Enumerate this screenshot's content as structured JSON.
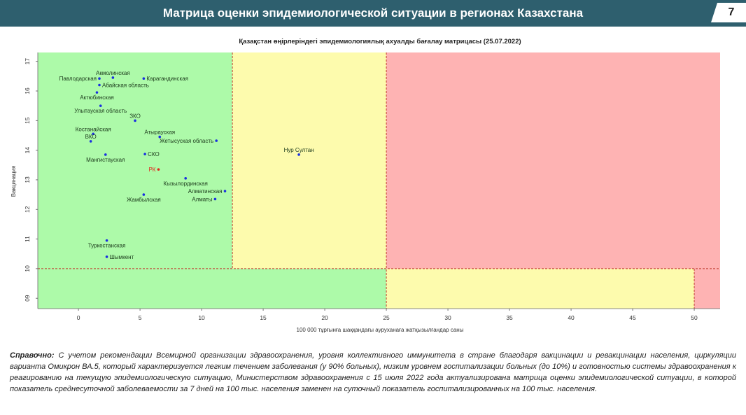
{
  "header": {
    "title": "Матрица оценки эпидемиологической ситуации в регионах Казахстана",
    "page_number": "7"
  },
  "chart_data": {
    "type": "scatter",
    "title": "Қазақстан өңірлеріндегі эпидемиологиялық ахуалды бағалау матрицасы  (25.07.2022)",
    "xlabel": "100 000 тұрғынға шаққандағы ауруханаға жатқызылғандар саны",
    "ylabel": "Вакцинация",
    "xlim": [
      -3.3,
      52.1
    ],
    "ylim": [
      8.65,
      17.3
    ],
    "x_ticks": [
      "0",
      "5",
      "10",
      "15",
      "20",
      "25",
      "30",
      "35",
      "40",
      "45",
      "50"
    ],
    "y_ticks": [
      "09",
      "10",
      "11",
      "12",
      "13",
      "14",
      "15",
      "16",
      "17"
    ],
    "thresholds": {
      "x1": 12.5,
      "x2": 25,
      "x3": 50,
      "y": 10
    },
    "zone_colors": {
      "green": "#adfaa9",
      "yellow": "#fdfbad",
      "red": "#feb3b3"
    },
    "point_color": "#1a2fe0",
    "highlight_color": "#e0251b",
    "points": [
      {
        "name": "Акмолинская",
        "x": 2.8,
        "y": 16.45,
        "label_pos": "above"
      },
      {
        "name": "Павлодарская",
        "x": 1.7,
        "y": 16.42,
        "label_pos": "left"
      },
      {
        "name": "Карагандинская",
        "x": 5.3,
        "y": 16.42,
        "label_pos": "right"
      },
      {
        "name": "Абайская область",
        "x": 1.7,
        "y": 16.2,
        "label_pos": "right"
      },
      {
        "name": "Актюбинская",
        "x": 1.5,
        "y": 15.95,
        "label_pos": "below"
      },
      {
        "name": "Улытауская область",
        "x": 1.8,
        "y": 15.5,
        "label_pos": "below"
      },
      {
        "name": "ЗКО",
        "x": 4.6,
        "y": 15.0,
        "label_pos": "above"
      },
      {
        "name": "Костанайская",
        "x": 1.2,
        "y": 14.55,
        "label_pos": "above"
      },
      {
        "name": "ВКО",
        "x": 1.0,
        "y": 14.3,
        "label_pos": "above"
      },
      {
        "name": "Атырауская",
        "x": 6.6,
        "y": 14.45,
        "label_pos": "above"
      },
      {
        "name": "Жетысуская область",
        "x": 11.2,
        "y": 14.32,
        "label_pos": "left"
      },
      {
        "name": "Нур Султан",
        "x": 17.9,
        "y": 13.85,
        "label_pos": "above"
      },
      {
        "name": "Мангистауская",
        "x": 2.2,
        "y": 13.85,
        "label_pos": "below"
      },
      {
        "name": "СКО",
        "x": 5.4,
        "y": 13.87,
        "label_pos": "right"
      },
      {
        "name": "РК",
        "x": 6.5,
        "y": 13.35,
        "label_pos": "left",
        "highlight": true
      },
      {
        "name": "Кызылординская",
        "x": 8.7,
        "y": 13.05,
        "label_pos": "below"
      },
      {
        "name": "Алматинская",
        "x": 11.9,
        "y": 12.62,
        "label_pos": "left"
      },
      {
        "name": "Жамбылская",
        "x": 5.3,
        "y": 12.5,
        "label_pos": "below"
      },
      {
        "name": "Алматы",
        "x": 11.1,
        "y": 12.35,
        "label_pos": "left"
      },
      {
        "name": "Туркестанская",
        "x": 2.3,
        "y": 10.95,
        "label_pos": "below"
      },
      {
        "name": "Шымкент",
        "x": 2.3,
        "y": 10.4,
        "label_pos": "right"
      }
    ]
  },
  "note": {
    "lead": "Справочно:",
    "text": " С учетом рекомендации Всемирной организации здравоохранения, уровня коллективного иммунитета в стране благодаря вакцинации и ревакцинации населения, циркуляции варианта Омикрон ВА.5, который характеризуется легким течением заболевания (у 90% больных), низким уровнем госпитализации больных (до 10%) и готовностью системы здравоохранения к реагированию на текущую эпидемиологическую ситуацию, Министерством здравоохранения с 15 июля 2022 года актуализирована матрица оценки эпидемиологической ситуации, в которой показатель  среднесуточной заболеваемости за 7 дней на 100 тыс. населения заменен на  суточный показатель госпитализированных на 100 тыс. населения."
  }
}
